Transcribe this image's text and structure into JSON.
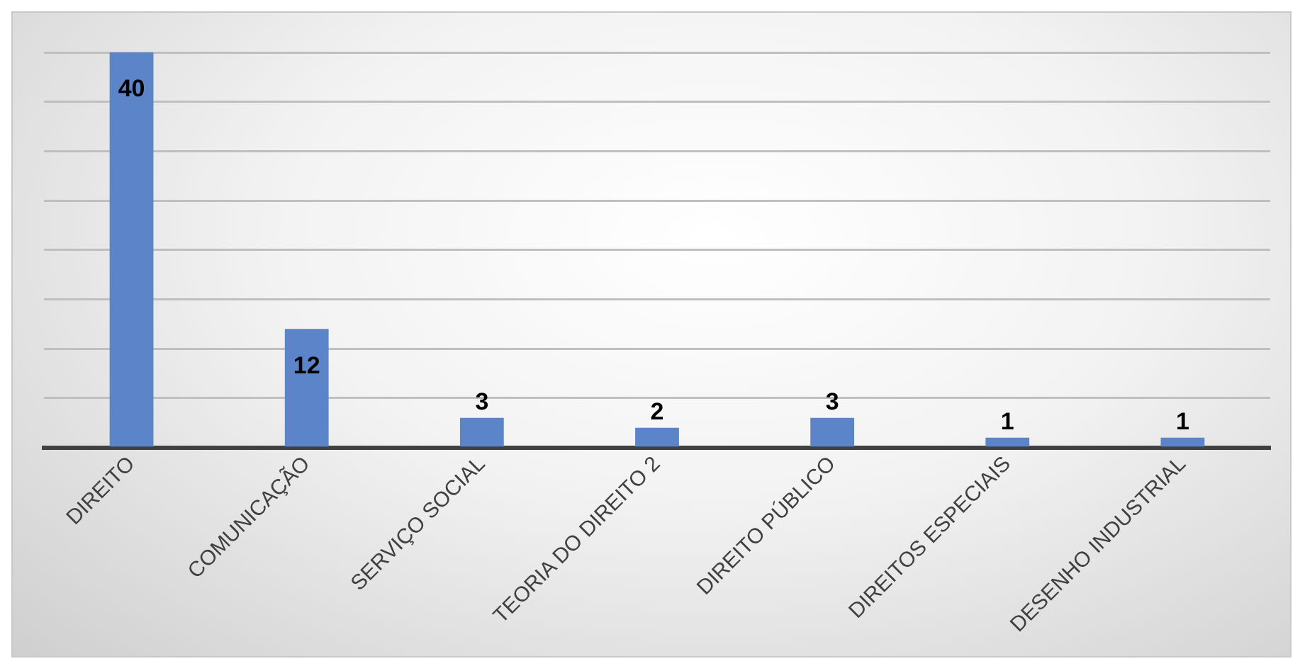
{
  "chart_data": {
    "type": "bar",
    "categories": [
      "DIREITO",
      "COMUNICAÇÃO",
      "SERVIÇO SOCIAL",
      "TEORIA DO DIREITO 2",
      "DIREITO PÚBLICO",
      "DIREITOS ESPECIAIS",
      "DESENHO INDUSTRIAL"
    ],
    "values": [
      40,
      12,
      3,
      2,
      3,
      1,
      1
    ],
    "color": "#5b84c9",
    "grid": "y",
    "tick_labels": "x",
    "data_labels": true
  }
}
